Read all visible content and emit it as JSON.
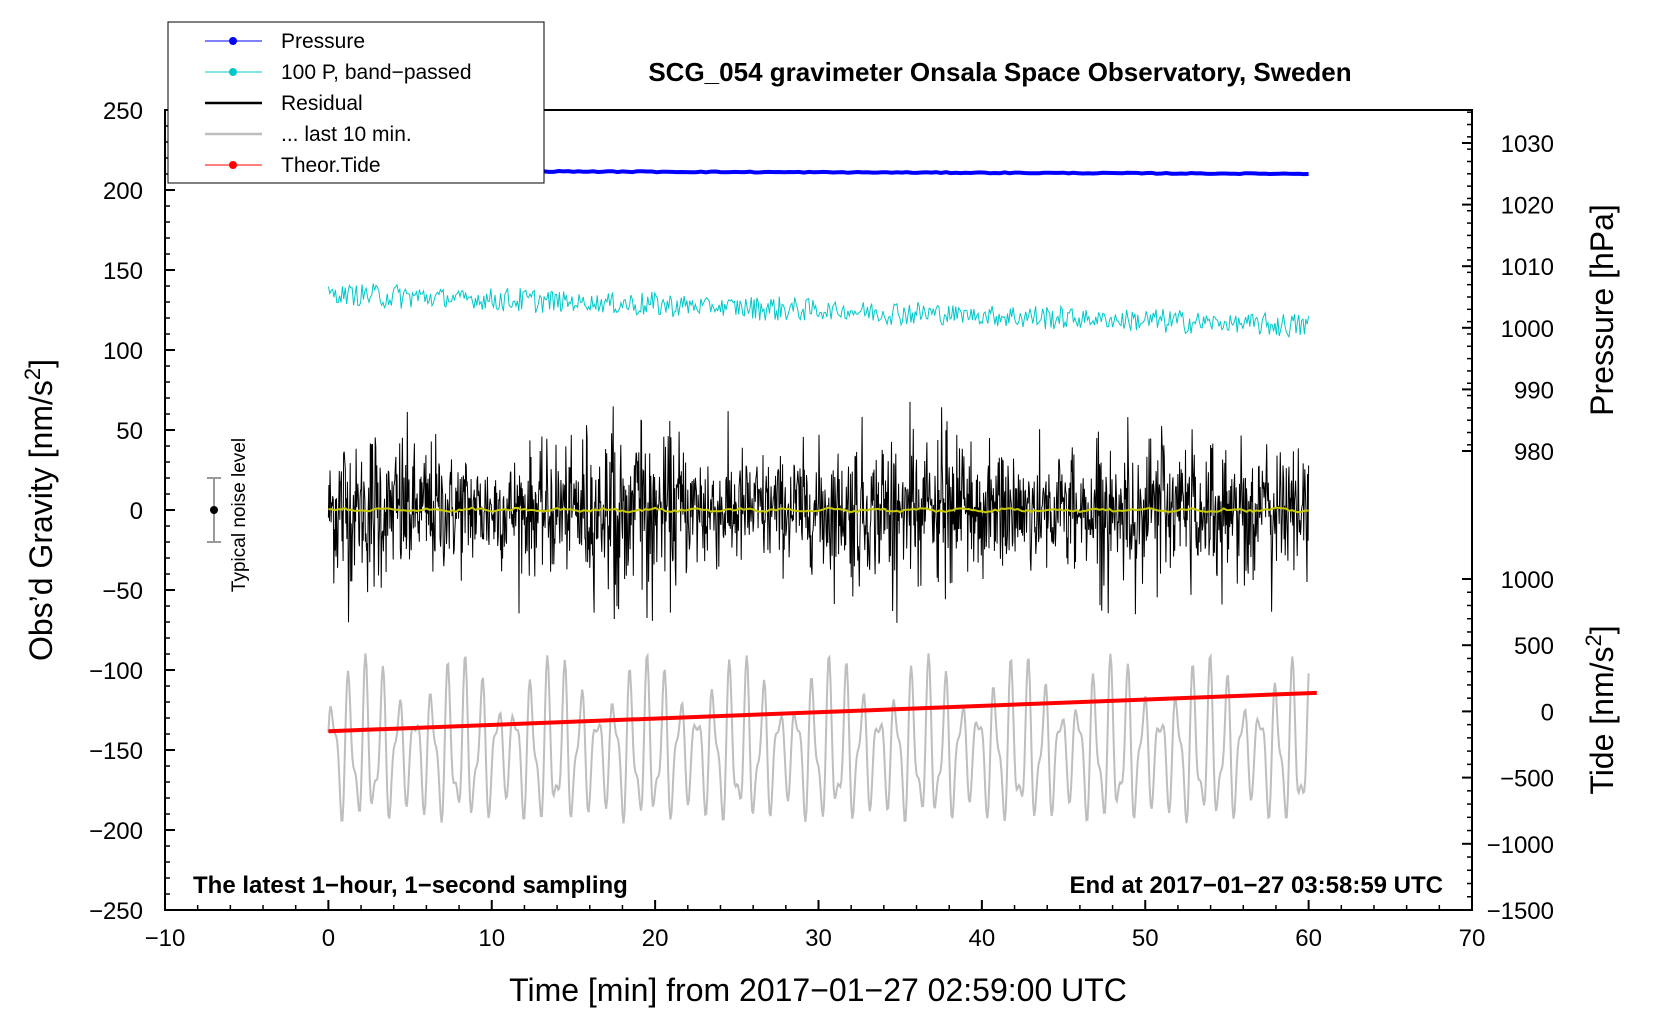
{
  "chart_data": {
    "type": "line",
    "title": "SCG_054 gravimeter Onsala Space Observatory, Sweden",
    "xlabel": "Time [min] from 2017−01−27 02:59:00 UTC",
    "ylabel_left": "Obs’d Gravity [nm/s",
    "ylabel_left_sup": "2",
    "ylabel_left_end": "]",
    "ylabel_right_pressure": "Pressure [hPa]",
    "ylabel_right_tide": "Tide [nm/s",
    "ylabel_right_tide_sup": "2",
    "ylabel_right_tide_end": "]",
    "xlim": [
      -10,
      70
    ],
    "ylim_gravity": [
      -250,
      250
    ],
    "ylim_pressure_visible": [
      980,
      1030
    ],
    "ylim_tide_visible": [
      -1500,
      1000
    ],
    "x_ticks": [
      "−10",
      "0",
      "10",
      "20",
      "30",
      "40",
      "50",
      "60",
      "70"
    ],
    "y_ticks_gravity": [
      "250",
      "200",
      "150",
      "100",
      "50",
      "0",
      "−50",
      "−100",
      "−150",
      "−200",
      "−250"
    ],
    "y_ticks_pressure": [
      "1030",
      "1020",
      "1010",
      "1000",
      "990",
      "980"
    ],
    "y_ticks_tide": [
      "1000",
      "500",
      "0",
      "−500",
      "−1000",
      "−1500"
    ],
    "note_left": "The latest 1−hour, 1−second sampling",
    "note_right": "End at 2017−01−27 03:58:59 UTC",
    "noise_label": "Typical noise level",
    "noise_marker": {
      "x": -7,
      "center": 0,
      "halfrange": 20
    },
    "legend": [
      {
        "label": "Pressure",
        "color": "#0000ff",
        "marker": true
      },
      {
        "label": "100 P, band−passed",
        "color": "#00c8c8",
        "marker": true
      },
      {
        "label": "Residual",
        "color": "#000000",
        "marker": false
      },
      {
        "label": "... last 10 min.",
        "color": "#bebebe",
        "marker": false
      },
      {
        "label": "Theor.Tide",
        "color": "#ff0000",
        "marker": true
      }
    ],
    "series": [
      {
        "name": "Pressure",
        "color": "#0000ff",
        "axis": "pressure",
        "x_range": [
          0,
          60
        ],
        "start": 1025.5,
        "end": 1025.0,
        "noise": 0.15
      },
      {
        "name": "100 P, band−passed",
        "color": "#00c8c8",
        "axis": "gravity",
        "x_range": [
          0,
          60
        ],
        "start": 135,
        "end": 115,
        "amplitude": 8
      },
      {
        "name": "Residual",
        "color": "#000000",
        "axis": "gravity",
        "x_range": [
          0,
          60
        ],
        "mean": 0,
        "amplitude": 75
      },
      {
        "name": "Residual smoothed",
        "color": "#c8c800",
        "axis": "gravity",
        "x_range": [
          0,
          60
        ],
        "mean": 0,
        "amplitude": 1.5
      },
      {
        "name": "... last 10 min.",
        "color": "#bebebe",
        "axis": "gravity",
        "x_range": [
          0,
          60
        ],
        "mean": -150,
        "amplitude": 55
      },
      {
        "name": "Theor.Tide",
        "color": "#ff0000",
        "axis": "tide",
        "x_range": [
          0,
          60.5
        ],
        "start": -150,
        "end": 140
      }
    ]
  }
}
